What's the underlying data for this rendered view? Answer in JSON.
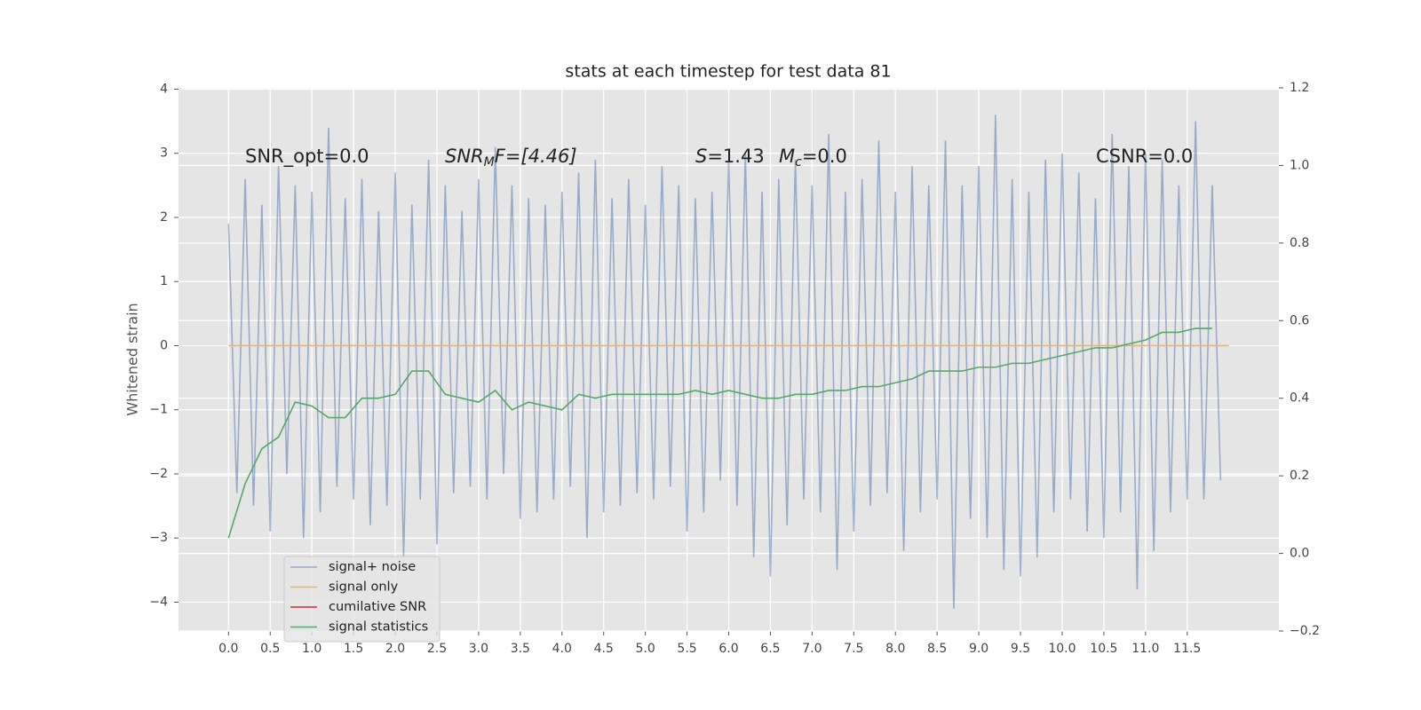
{
  "chart_data": {
    "type": "line",
    "title": "stats at each timestep for test data 81",
    "y_label": "Whitened strain",
    "annotations": [
      [
        "SNR_opt=0.0"
      ],
      [
        "SNR",
        "M",
        "F=[4.46]"
      ],
      [
        "S",
        "=1.43"
      ],
      [
        "M",
        "c",
        "=0.0"
      ],
      [
        "CSNR=0.0"
      ]
    ],
    "xlim": [
      -0.6,
      12.6
    ],
    "ylim": [
      -4.45,
      4.02
    ],
    "y2lim": [
      -0.2,
      1.2
    ],
    "xticks": [
      {
        "value": 0,
        "label": "0.0"
      },
      0.5,
      {
        "value": 1,
        "label": "1.0"
      },
      1.5,
      {
        "value": 2,
        "label": "2.0"
      },
      2.5,
      {
        "value": 3,
        "label": "3.0"
      },
      3.5,
      {
        "value": 4,
        "label": "4.0"
      },
      4.5,
      {
        "value": 5,
        "label": "5.0"
      },
      5.5,
      {
        "value": 6,
        "label": "6.0"
      },
      6.5,
      {
        "value": 7,
        "label": "7.0"
      },
      7.5,
      {
        "value": 8,
        "label": "8.0"
      },
      8.5,
      {
        "value": 9,
        "label": "9.0"
      },
      9.5,
      {
        "value": 10,
        "label": "10.0"
      },
      10.5,
      {
        "value": 11,
        "label": "11.0"
      },
      11.5
    ],
    "yticks": [
      {
        "value": -4,
        "label": "−4"
      },
      {
        "value": -3,
        "label": "−3"
      },
      {
        "value": -2,
        "label": "−2"
      },
      {
        "value": -1,
        "label": "−1"
      },
      0,
      1,
      2,
      3,
      4
    ],
    "y2ticks": [
      {
        "value": -0.2,
        "label": "−0.2"
      },
      {
        "value": 0,
        "label": "0.0"
      },
      0.2,
      0.4,
      0.6,
      0.8,
      {
        "value": 1,
        "label": "1.0"
      },
      1.2
    ],
    "grid": true,
    "legend": "lower left",
    "series": [
      {
        "name": "signal+ noise",
        "color": "#4c72b0",
        "x": [
          0.0,
          0.1,
          0.2,
          0.3,
          0.4,
          0.5,
          0.6,
          0.7,
          0.8,
          0.9,
          1.0,
          1.1,
          1.2,
          1.3,
          1.4,
          1.5,
          1.6,
          1.7,
          1.8,
          1.9,
          2.0,
          2.1,
          2.2,
          2.3,
          2.4,
          2.5,
          2.6,
          2.7,
          2.8,
          2.9,
          3.0,
          3.1,
          3.2,
          3.3,
          3.4,
          3.5,
          3.6,
          3.7,
          3.8,
          3.9,
          4.0,
          4.1,
          4.2,
          4.3,
          4.4,
          4.5,
          4.6,
          4.7,
          4.8,
          4.9,
          5.0,
          5.1,
          5.2,
          5.3,
          5.4,
          5.5,
          5.6,
          5.7,
          5.8,
          5.9,
          6.0,
          6.1,
          6.2,
          6.3,
          6.4,
          6.5,
          6.6,
          6.7,
          6.8,
          6.9,
          7.0,
          7.1,
          7.2,
          7.3,
          7.4,
          7.5,
          7.6,
          7.7,
          7.8,
          7.9,
          8.0,
          8.1,
          8.2,
          8.3,
          8.4,
          8.5,
          8.6,
          8.7,
          8.8,
          8.9,
          9.0,
          9.1,
          9.2,
          9.3,
          9.4,
          9.5,
          9.6,
          9.7,
          9.8,
          9.9,
          10.0,
          10.1,
          10.2,
          10.3,
          10.4,
          10.5,
          10.6,
          10.7,
          10.8,
          10.9,
          11.0,
          11.1,
          11.2,
          11.3,
          11.4,
          11.5,
          11.6,
          11.7,
          11.8,
          11.9
        ],
        "values": [
          1.9,
          -2.3,
          2.6,
          -2.5,
          2.2,
          -2.9,
          2.8,
          -2.0,
          2.5,
          -3.0,
          2.4,
          -2.6,
          3.4,
          -2.2,
          2.3,
          -2.4,
          2.6,
          -2.8,
          2.1,
          -2.5,
          2.7,
          -3.3,
          2.2,
          -2.4,
          2.9,
          -3.1,
          2.5,
          -2.3,
          2.1,
          -2.2,
          2.6,
          -2.4,
          3.1,
          -2.0,
          2.5,
          -2.7,
          2.3,
          -2.6,
          2.2,
          -2.4,
          2.4,
          -2.2,
          2.7,
          -3.0,
          2.9,
          -2.6,
          2.3,
          -2.5,
          2.6,
          -2.3,
          2.2,
          -2.4,
          2.8,
          -2.2,
          2.5,
          -2.9,
          2.3,
          -2.6,
          2.4,
          -2.1,
          2.9,
          -2.5,
          3.0,
          -3.3,
          2.4,
          -3.6,
          2.6,
          -2.8,
          2.9,
          -2.4,
          2.5,
          -2.6,
          3.3,
          -3.5,
          2.4,
          -2.9,
          2.6,
          -2.5,
          3.2,
          -2.3,
          2.4,
          -3.2,
          2.8,
          -2.6,
          2.5,
          -2.4,
          3.2,
          -4.1,
          2.5,
          -2.7,
          2.8,
          -3.0,
          3.6,
          -3.5,
          2.6,
          -3.6,
          2.4,
          -3.3,
          2.9,
          -2.6,
          3.0,
          -2.4,
          2.7,
          -2.9,
          2.3,
          -3.0,
          3.3,
          -2.6,
          2.8,
          -3.8,
          3.0,
          -3.2,
          2.9,
          -2.6,
          2.5,
          -2.4,
          3.5,
          -2.4,
          2.5,
          -2.1
        ]
      },
      {
        "name": "signal only",
        "color": "#f0b45c",
        "x": [
          0,
          12
        ],
        "values": [
          0,
          0
        ]
      },
      {
        "name": "cumilative SNR",
        "color": "#d62728"
      },
      {
        "name": "signal statistics",
        "color": "#55a868",
        "axis": "y2",
        "x": [
          0.0,
          0.2,
          0.4,
          0.6,
          0.8,
          1.0,
          1.2,
          1.4,
          1.6,
          1.8,
          2.0,
          2.2,
          2.4,
          2.6,
          2.8,
          3.0,
          3.2,
          3.4,
          3.6,
          3.8,
          4.0,
          4.2,
          4.4,
          4.6,
          4.8,
          5.0,
          5.2,
          5.4,
          5.6,
          5.8,
          6.0,
          6.2,
          6.4,
          6.6,
          6.8,
          7.0,
          7.2,
          7.4,
          7.6,
          7.8,
          8.0,
          8.2,
          8.4,
          8.6,
          8.8,
          9.0,
          9.2,
          9.4,
          9.6,
          9.8,
          10.0,
          10.2,
          10.4,
          10.6,
          10.8,
          11.0,
          11.2,
          11.4,
          11.6,
          11.8
        ],
        "values": [
          0.04,
          0.18,
          0.27,
          0.3,
          0.39,
          0.38,
          0.35,
          0.35,
          0.4,
          0.4,
          0.41,
          0.47,
          0.47,
          0.41,
          0.4,
          0.39,
          0.42,
          0.37,
          0.39,
          0.38,
          0.37,
          0.41,
          0.4,
          0.41,
          0.41,
          0.41,
          0.41,
          0.41,
          0.42,
          0.41,
          0.42,
          0.41,
          0.4,
          0.4,
          0.41,
          0.41,
          0.42,
          0.42,
          0.43,
          0.43,
          0.44,
          0.45,
          0.47,
          0.47,
          0.47,
          0.48,
          0.48,
          0.49,
          0.49,
          0.5,
          0.51,
          0.52,
          0.53,
          0.53,
          0.54,
          0.55,
          0.57,
          0.57,
          0.58,
          0.58
        ]
      }
    ]
  }
}
